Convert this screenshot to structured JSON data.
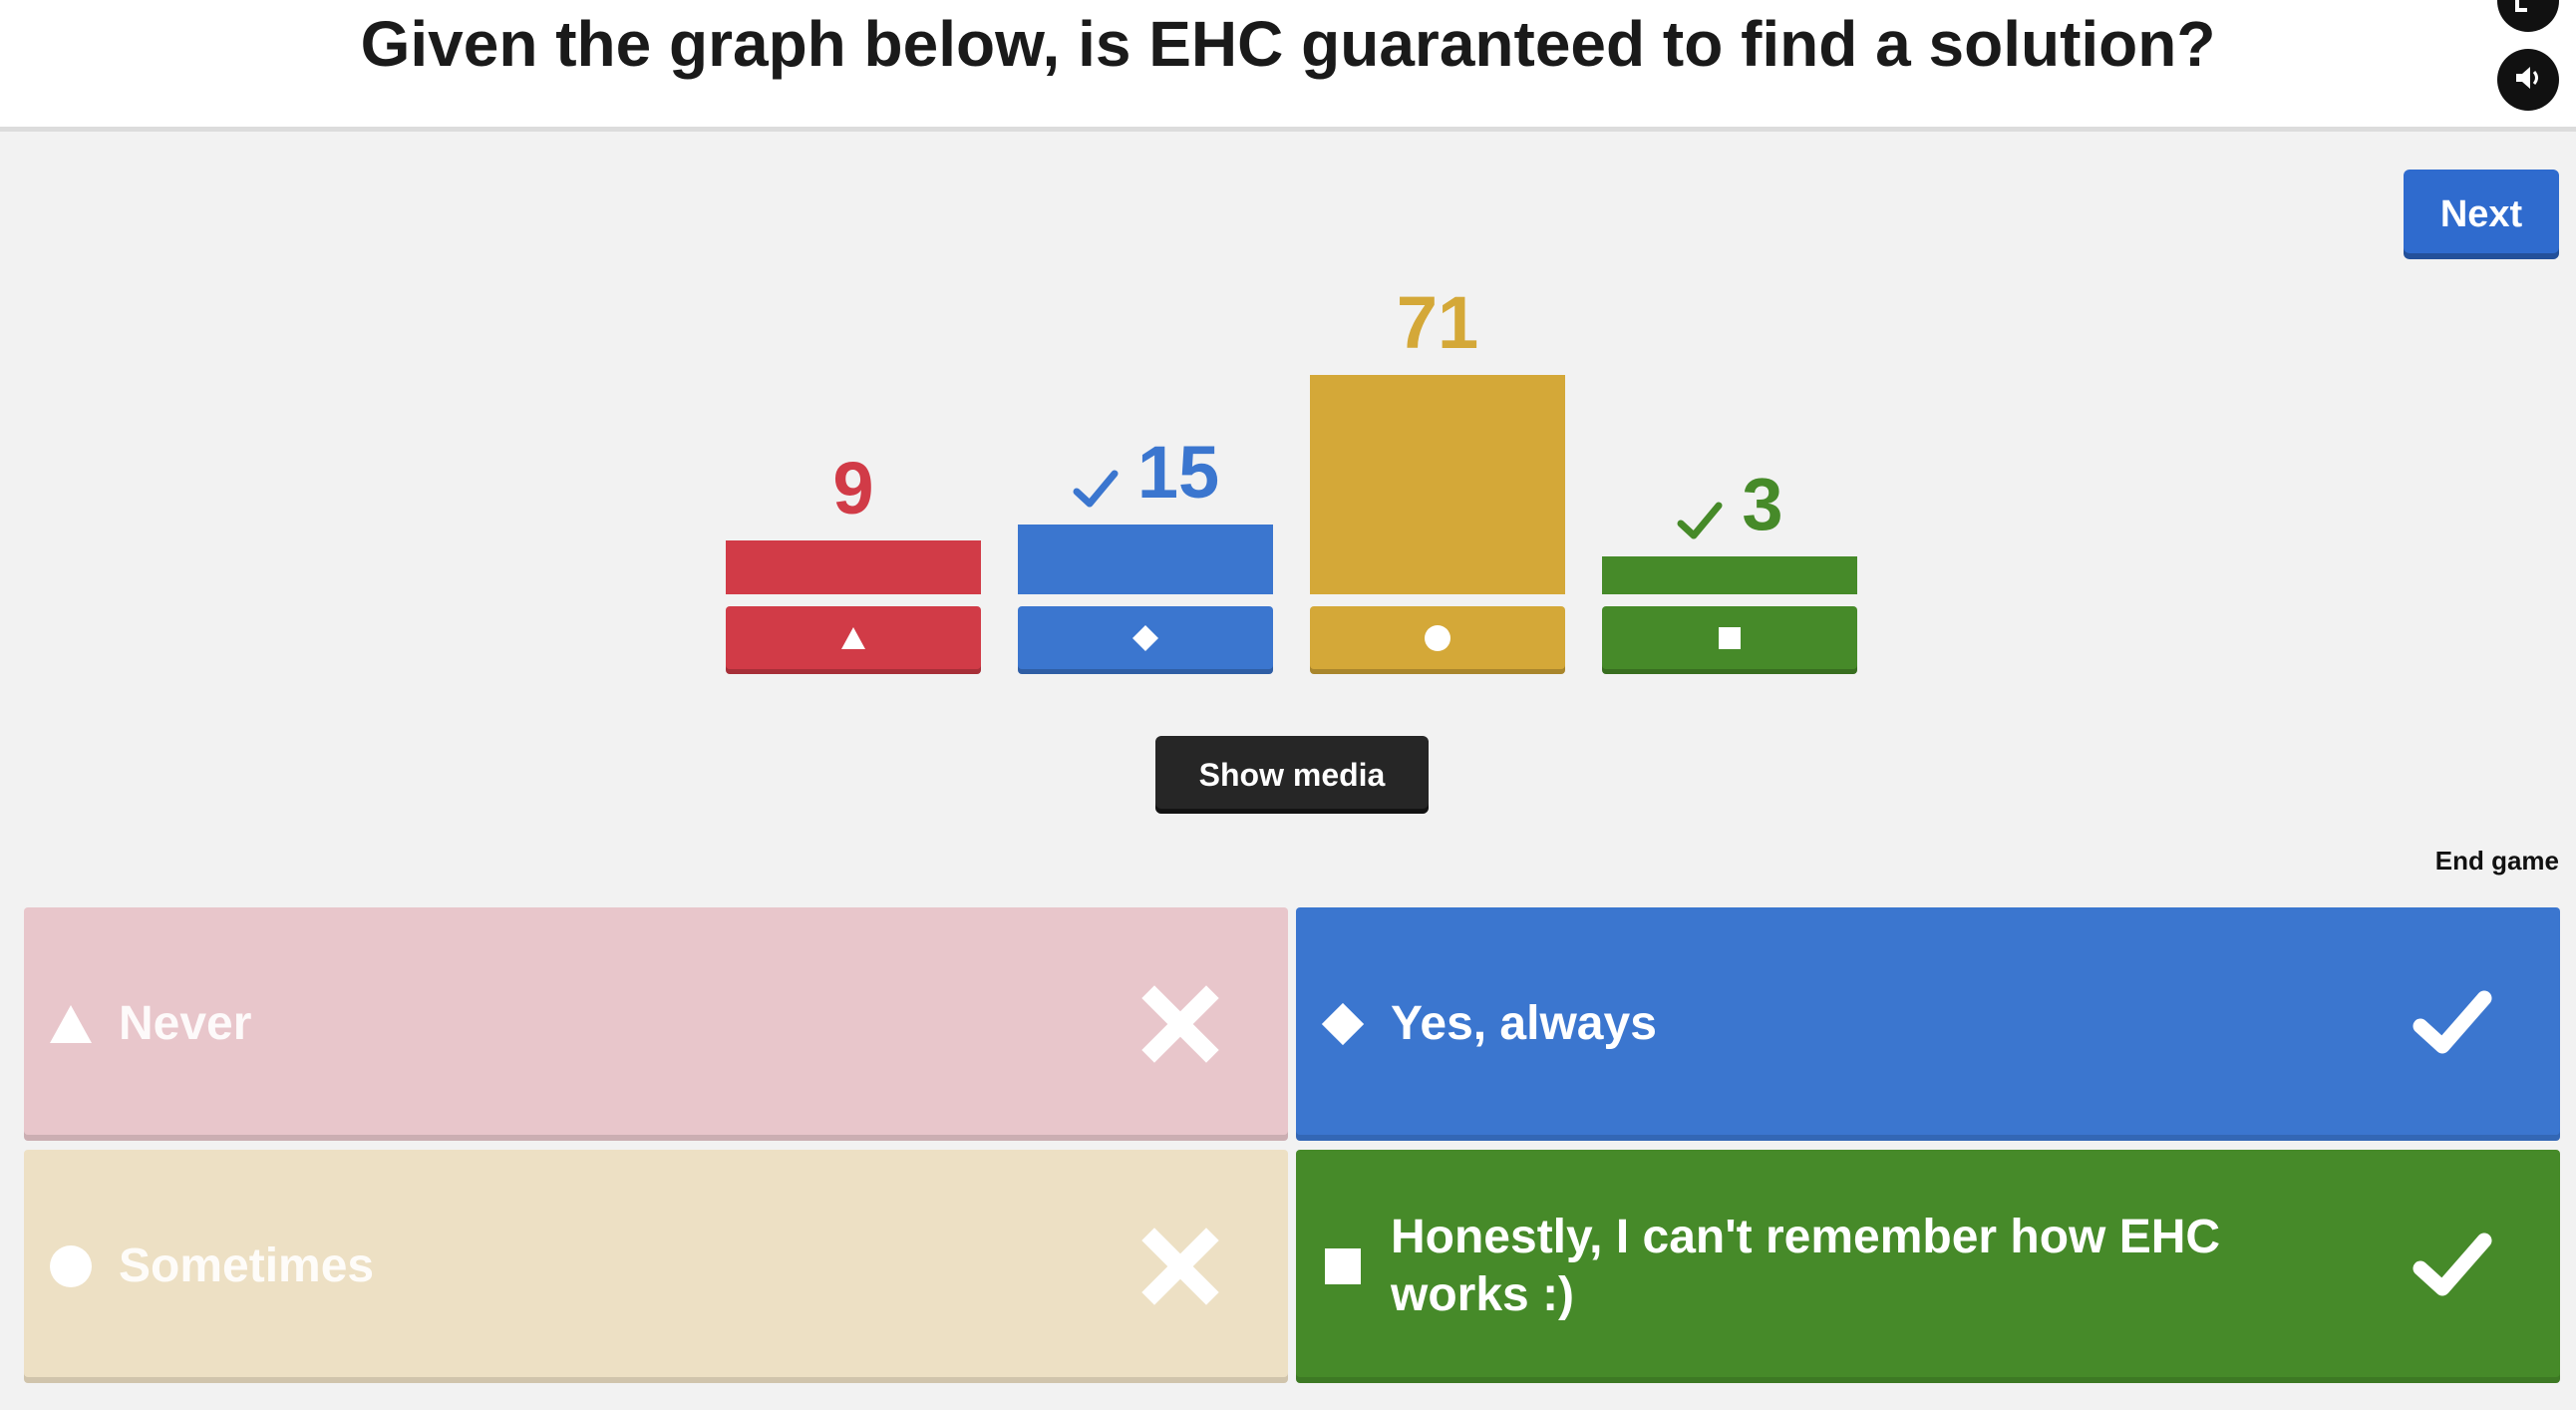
{
  "question": "Given the graph below, is EHC guaranteed to find a solution?",
  "controls": {
    "next_label": "Next",
    "show_media_label": "Show media",
    "end_game_label": "End game"
  },
  "chart_data": {
    "type": "bar",
    "categories": [
      "triangle",
      "diamond",
      "circle",
      "square"
    ],
    "values": [
      9,
      15,
      71,
      3
    ],
    "correct": [
      false,
      true,
      false,
      true
    ],
    "colors": [
      "#d13b47",
      "#3b76cf",
      "#d4a838",
      "#468a29"
    ],
    "ylim": [
      0,
      71
    ]
  },
  "answers": [
    {
      "shape": "triangle-icon",
      "text": "Never",
      "correct": false,
      "color": "#e8c6cb"
    },
    {
      "shape": "diamond-icon",
      "text": "Yes, always",
      "correct": true,
      "color": "#3b76cf"
    },
    {
      "shape": "circle-icon",
      "text": "Sometimes",
      "correct": false,
      "color": "#ede0c4"
    },
    {
      "shape": "square-icon",
      "text": "Honestly, I can't remember how EHC works :)",
      "correct": true,
      "color": "#468a29"
    }
  ]
}
